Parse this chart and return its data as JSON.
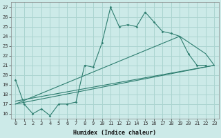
{
  "xlabel": "Humidex (Indice chaleur)",
  "xlim": [
    -0.5,
    23.5
  ],
  "ylim": [
    15.5,
    27.5
  ],
  "xticks": [
    0,
    1,
    2,
    3,
    4,
    5,
    6,
    7,
    8,
    9,
    10,
    11,
    12,
    13,
    14,
    15,
    16,
    17,
    18,
    19,
    20,
    21,
    22,
    23
  ],
  "yticks": [
    16,
    17,
    18,
    19,
    20,
    21,
    22,
    23,
    24,
    25,
    26,
    27
  ],
  "bg_color": "#cceae8",
  "grid_color": "#aad4d0",
  "line_color": "#2d7d6f",
  "line1_x": [
    0,
    1,
    2,
    3,
    4,
    5,
    6,
    7,
    8,
    9,
    10,
    11,
    12,
    13,
    14,
    15,
    16,
    17,
    18,
    19,
    20,
    21,
    22
  ],
  "line1_y": [
    19.5,
    17.0,
    16.0,
    16.5,
    15.8,
    17.0,
    17.0,
    17.2,
    21.0,
    20.8,
    23.3,
    27.0,
    25.0,
    25.2,
    25.0,
    26.5,
    25.5,
    24.5,
    24.3,
    24.0,
    22.2,
    21.0,
    21.0
  ],
  "line2_x": [
    0,
    23
  ],
  "line2_y": [
    17.0,
    21.0
  ],
  "line3_x": [
    0,
    19,
    22,
    23
  ],
  "line3_y": [
    17.0,
    24.0,
    22.2,
    21.0
  ],
  "line4_x": [
    0,
    23
  ],
  "line4_y": [
    17.3,
    21.0
  ]
}
